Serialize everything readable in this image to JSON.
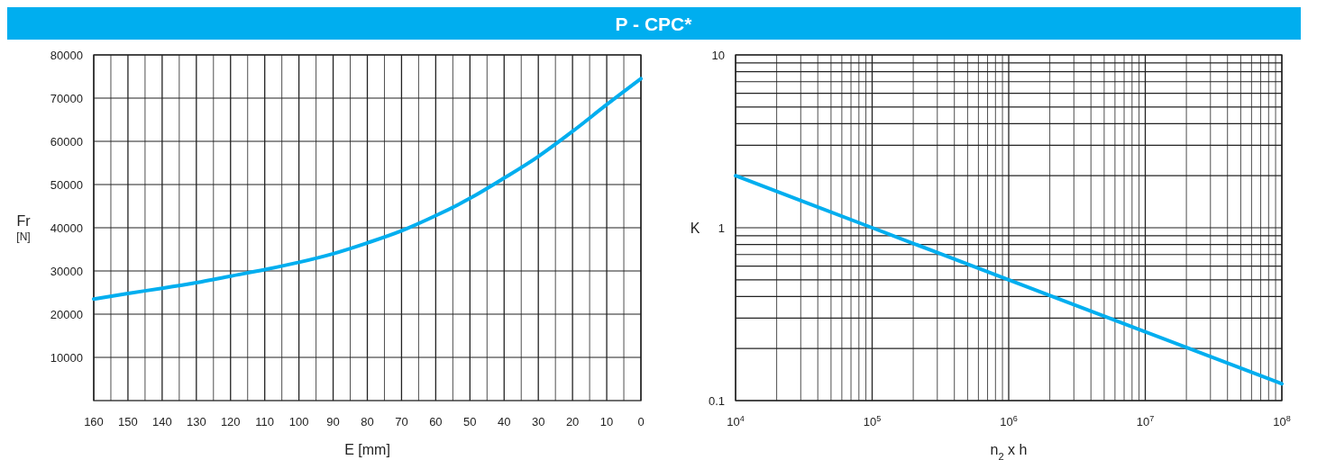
{
  "chart_data": [
    {
      "type": "line",
      "title": "P - CPC*",
      "xlabel": "E [mm]",
      "ylabel": "Fr [N]",
      "x": [
        160,
        150,
        140,
        130,
        120,
        110,
        100,
        90,
        80,
        70,
        60,
        50,
        40,
        30,
        20,
        10,
        0
      ],
      "series": [
        {
          "color": "#00aeef",
          "values": [
            23500,
            24800,
            26000,
            27300,
            28800,
            30300,
            32000,
            34000,
            36500,
            39300,
            42800,
            46800,
            51500,
            56500,
            62300,
            68500,
            74500
          ]
        }
      ],
      "xlim": [
        160,
        0
      ],
      "xticks": [
        160,
        {
          "value": 155,
          "label": null
        },
        150,
        {
          "value": 145,
          "label": null
        },
        140,
        {
          "value": 135,
          "label": null
        },
        130,
        {
          "value": 125,
          "label": null
        },
        120,
        {
          "value": 115,
          "label": null
        },
        110,
        {
          "value": 105,
          "label": null
        },
        100,
        {
          "value": 95,
          "label": null
        },
        90,
        {
          "value": 85,
          "label": null
        },
        80,
        {
          "value": 75,
          "label": null
        },
        70,
        {
          "value": 65,
          "label": null
        },
        60,
        {
          "value": 55,
          "label": null
        },
        50,
        {
          "value": 45,
          "label": null
        },
        40,
        {
          "value": 35,
          "label": null
        },
        30,
        {
          "value": 25,
          "label": null
        },
        20,
        {
          "value": 15,
          "label": null
        },
        10,
        {
          "value": 5,
          "label": null
        },
        0
      ],
      "ylim": [
        0,
        80000
      ],
      "yticks": [
        10000,
        20000,
        30000,
        40000,
        50000,
        60000,
        70000,
        80000
      ],
      "grid": true,
      "marker": "none",
      "line_style": "solid"
    },
    {
      "type": "line",
      "xlabel": "n$_{2}$ x h",
      "ylabel": "K",
      "log": "xy",
      "x": [
        10000,
        100000,
        1000000,
        10000000,
        100000000
      ],
      "series": [
        {
          "color": "#00aeef",
          "values": [
            2.0,
            1.0,
            0.5,
            0.25,
            0.125
          ]
        }
      ],
      "xlim": [
        10000,
        100000000
      ],
      "xticks": [
        {
          "value": 10000,
          "label": "10$^{4}$"
        },
        {
          "value": 20000,
          "label": null
        },
        {
          "value": 30000,
          "label": null
        },
        {
          "value": 40000,
          "label": null
        },
        {
          "value": 50000,
          "label": null
        },
        {
          "value": 60000,
          "label": null
        },
        {
          "value": 70000,
          "label": null
        },
        {
          "value": 80000,
          "label": null
        },
        {
          "value": 90000,
          "label": null
        },
        {
          "value": 100000,
          "label": "10$^{5}$"
        },
        {
          "value": 200000,
          "label": null
        },
        {
          "value": 300000,
          "label": null
        },
        {
          "value": 400000,
          "label": null
        },
        {
          "value": 500000,
          "label": null
        },
        {
          "value": 600000,
          "label": null
        },
        {
          "value": 700000,
          "label": null
        },
        {
          "value": 800000,
          "label": null
        },
        {
          "value": 900000,
          "label": null
        },
        {
          "value": 1000000,
          "label": "10$^{6}$"
        },
        {
          "value": 2000000,
          "label": null
        },
        {
          "value": 3000000,
          "label": null
        },
        {
          "value": 4000000,
          "label": null
        },
        {
          "value": 5000000,
          "label": null
        },
        {
          "value": 6000000,
          "label": null
        },
        {
          "value": 7000000,
          "label": null
        },
        {
          "value": 8000000,
          "label": null
        },
        {
          "value": 9000000,
          "label": null
        },
        {
          "value": 10000000,
          "label": "10$^{7}$"
        },
        {
          "value": 20000000,
          "label": null
        },
        {
          "value": 30000000,
          "label": null
        },
        {
          "value": 40000000,
          "label": null
        },
        {
          "value": 50000000,
          "label": null
        },
        {
          "value": 60000000,
          "label": null
        },
        {
          "value": 70000000,
          "label": null
        },
        {
          "value": 80000000,
          "label": null
        },
        {
          "value": 90000000,
          "label": null
        },
        {
          "value": 100000000,
          "label": "10$^{8}$"
        }
      ],
      "ylim": [
        0.1,
        10
      ],
      "yticks": [
        0.1,
        {
          "value": 0.2,
          "label": null
        },
        {
          "value": 0.3,
          "label": null
        },
        {
          "value": 0.4,
          "label": null
        },
        {
          "value": 0.5,
          "label": null
        },
        {
          "value": 0.6,
          "label": null
        },
        {
          "value": 0.7,
          "label": null
        },
        {
          "value": 0.8,
          "label": null
        },
        {
          "value": 0.9,
          "label": null
        },
        1,
        {
          "value": 2,
          "label": null
        },
        {
          "value": 3,
          "label": null
        },
        {
          "value": 4,
          "label": null
        },
        {
          "value": 5,
          "label": null
        },
        {
          "value": 6,
          "label": null
        },
        {
          "value": 7,
          "label": null
        },
        {
          "value": 8,
          "label": null
        },
        {
          "value": 9,
          "label": null
        },
        10
      ],
      "grid": true,
      "marker": "none",
      "line_style": "solid"
    }
  ]
}
